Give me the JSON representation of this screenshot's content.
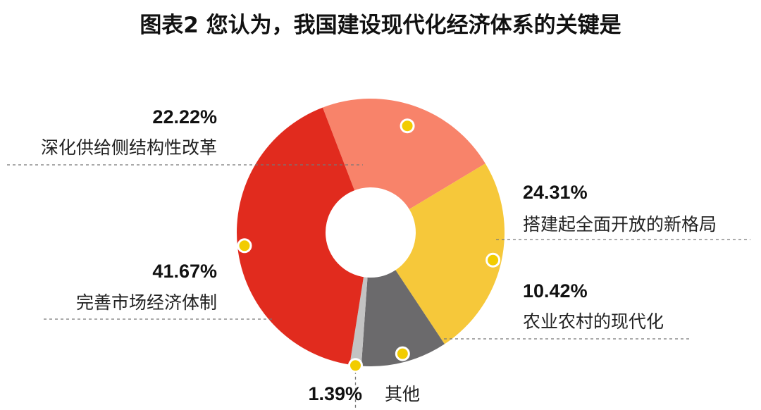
{
  "chart_data": {
    "type": "pie",
    "title": "图表2  您认为，我国建设现代化经济体系的关键是",
    "donut": true,
    "slices": [
      {
        "label": "深化供给侧结构性改革",
        "value": 22.22,
        "value_label": "22.22%",
        "color": "#F8836A"
      },
      {
        "label": "搭建起全面开放的新格局",
        "value": 24.31,
        "value_label": "24.31%",
        "color": "#F6C83A"
      },
      {
        "label": "农业农村的现代化",
        "value": 10.42,
        "value_label": "10.42%",
        "color": "#6B6A6C"
      },
      {
        "label": "其他",
        "value": 1.39,
        "value_label": "1.39%",
        "color": "#C3C3C3"
      },
      {
        "label": "完善市场经济体制",
        "value": 41.67,
        "value_label": "41.67%",
        "color": "#E12B1E"
      }
    ],
    "marker_color": "#F2CC00"
  }
}
